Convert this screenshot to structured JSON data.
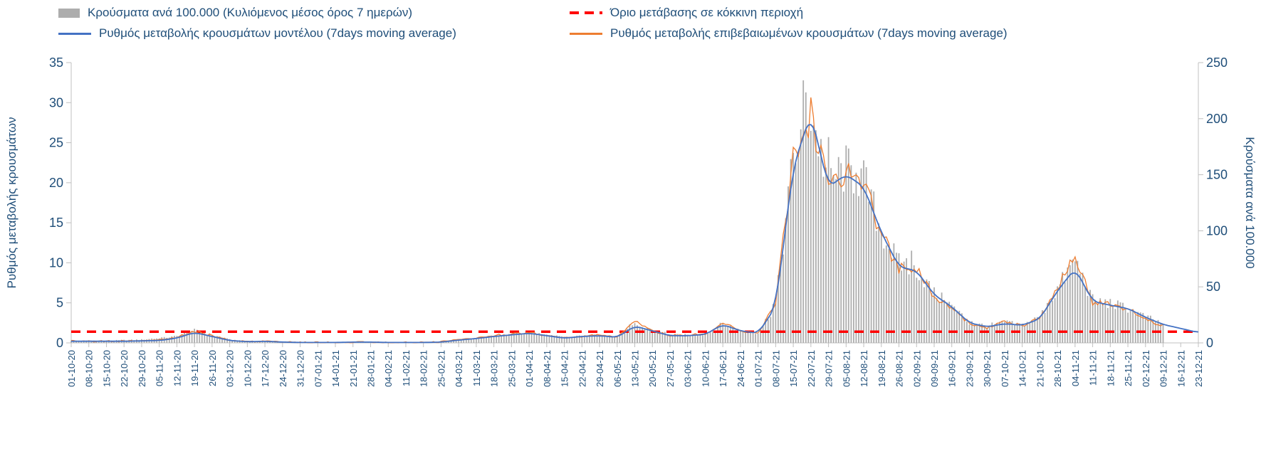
{
  "colors": {
    "blue": "#4472C4",
    "orange": "#ED7D31",
    "gray_bar": "#ADADAD",
    "red": "#FF0000",
    "text": "#1F4E79",
    "axis": "#C0C0C0"
  },
  "chart_data": {
    "type": "combo-bar-line",
    "total_days": 449,
    "days_per_point": 7,
    "x_tick_labels": [
      "01-10-20",
      "08-10-20",
      "15-10-20",
      "22-10-20",
      "29-10-20",
      "05-11-20",
      "12-11-20",
      "19-11-20",
      "26-11-20",
      "03-12-20",
      "10-12-20",
      "17-12-20",
      "24-12-20",
      "31-12-20",
      "07-01-21",
      "14-01-21",
      "21-01-21",
      "28-01-21",
      "04-02-21",
      "11-02-21",
      "18-02-21",
      "25-02-21",
      "04-03-21",
      "11-03-21",
      "18-03-21",
      "25-03-21",
      "01-04-21",
      "08-04-21",
      "15-04-21",
      "22-04-21",
      "29-04-21",
      "06-05-21",
      "13-05-21",
      "20-05-21",
      "27-05-21",
      "03-06-21",
      "10-06-21",
      "17-06-21",
      "24-06-21",
      "01-07-21",
      "08-07-21",
      "15-07-21",
      "22-07-21",
      "29-07-21",
      "05-08-21",
      "12-08-21",
      "19-08-21",
      "26-08-21",
      "02-09-21",
      "09-09-21",
      "16-09-21",
      "23-09-21",
      "30-09-21",
      "07-10-21",
      "14-10-21",
      "21-10-21",
      "28-10-21",
      "04-11-21",
      "11-11-21",
      "18-11-21",
      "25-11-21",
      "02-12-21",
      "09-12-21",
      "16-12-21",
      "23-12-21"
    ],
    "left_axis": {
      "label": "Ρυθμός μεταβολής κρουσμάτων",
      "min": 0,
      "max": 35,
      "ticks": [
        0,
        5,
        10,
        15,
        20,
        25,
        30,
        35
      ]
    },
    "right_axis": {
      "label": "Κρούσματα ανά 100.000",
      "min": 0,
      "max": 250,
      "ticks": [
        0,
        50,
        100,
        150,
        200,
        250
      ]
    },
    "threshold": {
      "label": "Όριο μετάβασης σε κόκκινη περιοχή",
      "value": 1.4,
      "axis": "left",
      "style": "dashed",
      "color_key": "red"
    },
    "grid": false,
    "legend_position": "top",
    "series": [
      {
        "name": "Κρούσματα ανά 100.000 (Κυλιόμενος μέσος όρος 7 ημερών)",
        "type": "bar",
        "axis": "right",
        "color_key": "gray_bar",
        "end_day": 434,
        "weekly_values": [
          2,
          2,
          2,
          2.5,
          3,
          4,
          6,
          11,
          7,
          3,
          1.5,
          1.5,
          1,
          0.8,
          0.6,
          0.6,
          0.8,
          1,
          0.8,
          0.6,
          0.6,
          0.8,
          2.5,
          4,
          6,
          7.5,
          9.5,
          7,
          5,
          6,
          7,
          5.5,
          16,
          11,
          7,
          7,
          8,
          17,
          11,
          9,
          34,
          165,
          205,
          145,
          155,
          145,
          100,
          70,
          66,
          44,
          33,
          18,
          15,
          18,
          16,
          23,
          48,
          74,
          38,
          35,
          31,
          23,
          17
        ]
      },
      {
        "name": "Ρυθμός μεταβολής κρουσμάτων μοντέλου (7days moving average)",
        "type": "line",
        "axis": "left",
        "color_key": "blue",
        "end_day": 448,
        "smooth": true,
        "weekly_values": [
          0.2,
          0.2,
          0.2,
          0.2,
          0.25,
          0.3,
          0.6,
          1.3,
          0.8,
          0.3,
          0.15,
          0.2,
          0.1,
          0.05,
          0.05,
          0.05,
          0.1,
          0.1,
          0.05,
          0.05,
          0.05,
          0.1,
          0.35,
          0.55,
          0.8,
          1.0,
          1.2,
          0.9,
          0.6,
          0.8,
          0.9,
          0.7,
          2.1,
          1.5,
          0.9,
          0.9,
          1.05,
          2.3,
          1.5,
          1.2,
          4.5,
          22.0,
          28.6,
          19.5,
          21.0,
          19.5,
          13.8,
          9.5,
          9.0,
          6.0,
          4.5,
          2.5,
          2.0,
          2.4,
          2.2,
          3.0,
          6.5,
          9.3,
          5.2,
          4.7,
          4.3,
          3.2,
          2.3,
          1.8,
          1.3
        ]
      },
      {
        "name": "Ρυθμός μεταβολής επιβεβαιωμένων κρουσμάτων (7days moving average)",
        "type": "line",
        "axis": "left",
        "color_key": "orange",
        "end_day": 434,
        "noisy": true,
        "weekly_values": [
          0.25,
          0.2,
          0.2,
          0.25,
          0.3,
          0.4,
          0.7,
          1.5,
          0.9,
          0.35,
          0.15,
          0.2,
          0.1,
          0.05,
          0.05,
          0.05,
          0.1,
          0.1,
          0.05,
          0.05,
          0.05,
          0.12,
          0.4,
          0.6,
          0.9,
          1.1,
          1.3,
          0.95,
          0.6,
          0.85,
          1.0,
          0.75,
          2.6,
          1.5,
          0.9,
          0.95,
          1.1,
          2.4,
          1.5,
          1.25,
          4.8,
          23.5,
          28.5,
          19.0,
          21.5,
          19.8,
          13.5,
          9.3,
          9.2,
          5.8,
          4.4,
          2.4,
          1.9,
          2.6,
          2.2,
          3.2,
          6.9,
          11.0,
          5.0,
          4.9,
          4.1,
          2.9,
          2.1
        ]
      }
    ]
  }
}
